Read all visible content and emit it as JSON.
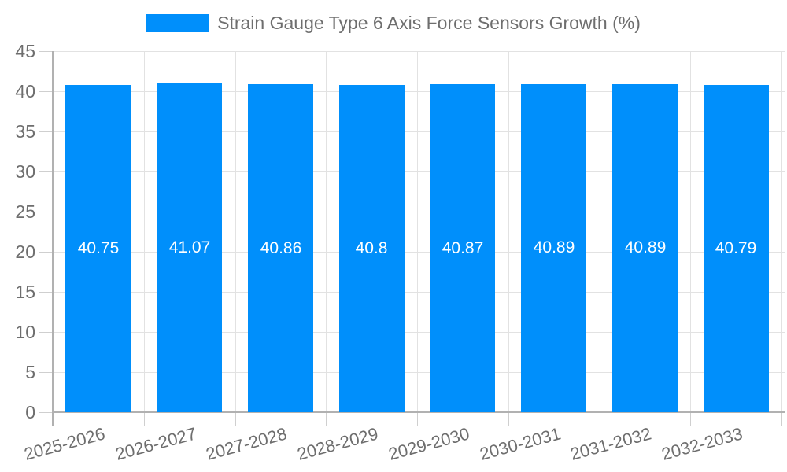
{
  "legend": {
    "label": "Strain Gauge Type 6 Axis Force Sensors Growth (%)"
  },
  "chart_data": {
    "type": "bar",
    "title": "Strain Gauge Type 6 Axis Force Sensors Growth (%)",
    "categories": [
      "2025-2026",
      "2026-2027",
      "2027-2028",
      "2028-2029",
      "2029-2030",
      "2030-2031",
      "2031-2032",
      "2032-2033"
    ],
    "values": [
      40.75,
      41.07,
      40.86,
      40.8,
      40.87,
      40.89,
      40.89,
      40.79
    ],
    "data_labels": [
      "40.75",
      "41.07",
      "40.86",
      "40.8",
      "40.87",
      "40.89",
      "40.89",
      "40.79"
    ],
    "xlabel": "",
    "ylabel": "",
    "ylim": [
      0,
      45
    ],
    "yticks": [
      0,
      5,
      10,
      15,
      20,
      25,
      30,
      35,
      40,
      45
    ],
    "grid": true,
    "legend_position": "top-center",
    "x_label_rotation_deg": -15,
    "colors": {
      "bar": "#008FFB",
      "grid": "#E2E2E2",
      "axis": "#B1B1B1",
      "tick": "#CFCFCF",
      "text": "#6E6E6E",
      "value_label": "#FFFFFF",
      "background": "#FFFFFF"
    }
  }
}
